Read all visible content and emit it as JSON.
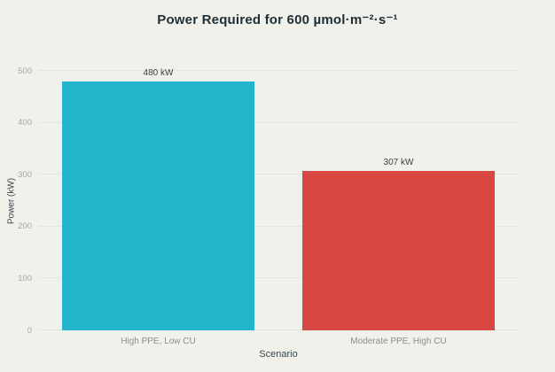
{
  "chart_data": {
    "type": "bar",
    "title": "Power Required for 600 µmol·m⁻²·s⁻¹",
    "xlabel": "Scenario",
    "ylabel": "Power (kW)",
    "categories": [
      "High PPE, Low CU",
      "Moderate PPE, High CU"
    ],
    "values": [
      480,
      307
    ],
    "value_labels": [
      "480 kW",
      "307 kW"
    ],
    "bar_colors": [
      "#23b5cb",
      "#d94743"
    ],
    "ylim": [
      0,
      500
    ],
    "yticks": [
      0,
      100,
      200,
      300,
      400,
      500
    ],
    "grid": true,
    "legend": false
  },
  "colors": {
    "background": "#f1f1ec",
    "gridline": "#e5e5df",
    "zero_line": "#cfcfc8",
    "title_text": "#1d2e36",
    "axis_title_text": "#39464b",
    "tick_text": "#a7a7a1",
    "category_text": "#8f8f89",
    "value_label_text": "#3d3d3b"
  }
}
